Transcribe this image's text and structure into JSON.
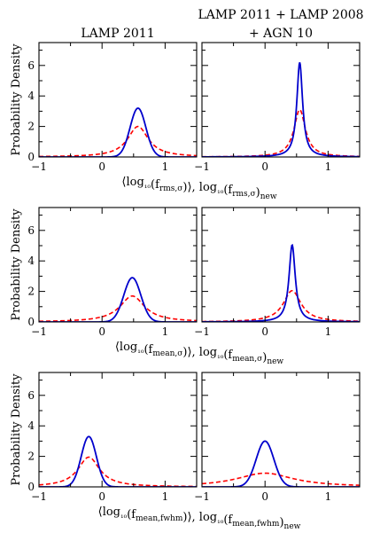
{
  "column_titles": [
    [
      "LAMP 2011"
    ],
    [
      "LAMP 2011 + LAMP 2008",
      "+ AGN 10"
    ]
  ],
  "ylabel": "Probability Density",
  "colors": {
    "solid": "#0000cc",
    "dashed": "#ff0000",
    "axis": "#000000"
  },
  "chart_data": [
    {
      "type": "line",
      "xlabel": "⟨log₁₀(f_rms,σ)⟩, log₁₀(f_rms,σ)_new",
      "xlim": [
        -1,
        1.5
      ],
      "ylim": [
        0,
        7.5
      ],
      "xticks": [
        -1,
        0,
        1
      ],
      "yticks": [
        0,
        2,
        4,
        6
      ],
      "panels": [
        {
          "series": [
            {
              "style": "solid",
              "shape": "gauss",
              "center": 0.57,
              "sigma": 0.125,
              "peak": 3.2
            },
            {
              "style": "dashed",
              "shape": "lorentz",
              "center": 0.57,
              "gamma": 0.2,
              "peak": 2.0
            }
          ]
        },
        {
          "series": [
            {
              "style": "solid",
              "shape": "lorentz",
              "center": 0.55,
              "gamma": 0.055,
              "peak": 6.2
            },
            {
              "style": "dashed",
              "shape": "lorentz",
              "center": 0.55,
              "gamma": 0.11,
              "peak": 3.1
            }
          ]
        }
      ]
    },
    {
      "type": "line",
      "xlabel": "⟨log₁₀(f_mean,σ)⟩, log₁₀(f_mean,σ)_new",
      "xlim": [
        -1,
        1.5
      ],
      "ylim": [
        0,
        7.5
      ],
      "xticks": [
        -1,
        0,
        1
      ],
      "yticks": [
        0,
        2,
        4,
        6
      ],
      "panels": [
        {
          "series": [
            {
              "style": "solid",
              "shape": "gauss",
              "center": 0.48,
              "sigma": 0.135,
              "peak": 2.9
            },
            {
              "style": "dashed",
              "shape": "lorentz",
              "center": 0.48,
              "gamma": 0.24,
              "peak": 1.7
            }
          ]
        },
        {
          "series": [
            {
              "style": "solid",
              "shape": "lorentz",
              "center": 0.43,
              "gamma": 0.06,
              "peak": 5.05
            },
            {
              "style": "dashed",
              "shape": "lorentz",
              "center": 0.43,
              "gamma": 0.17,
              "peak": 2.05
            }
          ]
        }
      ]
    },
    {
      "type": "line",
      "xlabel": "⟨log₁₀(f_mean,fwhm)⟩, log₁₀(f_mean,fwhm)_new",
      "xlim": [
        -1,
        1.5
      ],
      "ylim": [
        0,
        7.5
      ],
      "xticks": [
        -1,
        0,
        1
      ],
      "yticks": [
        0,
        2,
        4,
        6
      ],
      "panels": [
        {
          "series": [
            {
              "style": "solid",
              "shape": "gauss",
              "center": -0.21,
              "sigma": 0.12,
              "peak": 3.3
            },
            {
              "style": "dashed",
              "shape": "lorentz",
              "center": -0.21,
              "gamma": 0.21,
              "peak": 1.95
            }
          ]
        },
        {
          "series": [
            {
              "style": "solid",
              "shape": "gauss",
              "center": 0.0,
              "sigma": 0.14,
              "peak": 3.0
            },
            {
              "style": "dashed",
              "shape": "lorentz",
              "center": 0.0,
              "gamma": 0.55,
              "peak": 0.9
            }
          ]
        }
      ]
    }
  ]
}
